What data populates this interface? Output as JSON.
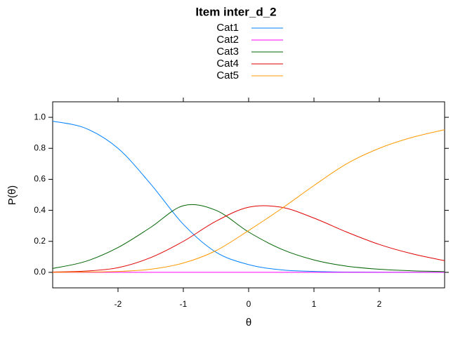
{
  "chart_data": {
    "type": "line",
    "title": "Item inter_d_2",
    "x_label": "θ",
    "y_label": "P(θ)",
    "x": [
      -3,
      -2.5,
      -2,
      -1.5,
      -1,
      -0.5,
      0,
      0.5,
      1,
      1.5,
      2,
      2.5,
      3
    ],
    "series": [
      {
        "name": "Cat1",
        "color": "#0080ff",
        "values": [
          0.975,
          0.93,
          0.8,
          0.57,
          0.31,
          0.13,
          0.05,
          0.016,
          0.006,
          0.002,
          0.001,
          0,
          0
        ]
      },
      {
        "name": "Cat2",
        "color": "#ff00ff",
        "values": [
          0,
          0,
          0,
          0,
          0,
          0,
          0,
          0,
          0,
          0,
          0,
          0,
          0
        ]
      },
      {
        "name": "Cat3",
        "color": "#006400",
        "values": [
          0.025,
          0.07,
          0.16,
          0.29,
          0.43,
          0.4,
          0.26,
          0.15,
          0.08,
          0.04,
          0.02,
          0.01,
          0.005
        ]
      },
      {
        "name": "Cat4",
        "color": "#e00000",
        "values": [
          0.002,
          0.008,
          0.03,
          0.095,
          0.2,
          0.33,
          0.42,
          0.42,
          0.35,
          0.26,
          0.18,
          0.12,
          0.075
        ]
      },
      {
        "name": "Cat5",
        "color": "#ff9900",
        "values": [
          0,
          0.002,
          0.006,
          0.02,
          0.06,
          0.14,
          0.27,
          0.41,
          0.56,
          0.7,
          0.8,
          0.87,
          0.92
        ]
      }
    ],
    "xlim": [
      -3,
      3
    ],
    "xticks": [
      -2,
      -1,
      0,
      1,
      2
    ],
    "ylim": [
      -0.1,
      1.1
    ],
    "yticks": [
      {
        "value": 0,
        "label": "0.0"
      },
      {
        "value": 0.2,
        "label": "0.2"
      },
      {
        "value": 0.4,
        "label": "0.4"
      },
      {
        "value": 0.6,
        "label": "0.6"
      },
      {
        "value": 0.8,
        "label": "0.8"
      },
      {
        "value": 1,
        "label": "1.0"
      }
    ],
    "legend": "top"
  }
}
